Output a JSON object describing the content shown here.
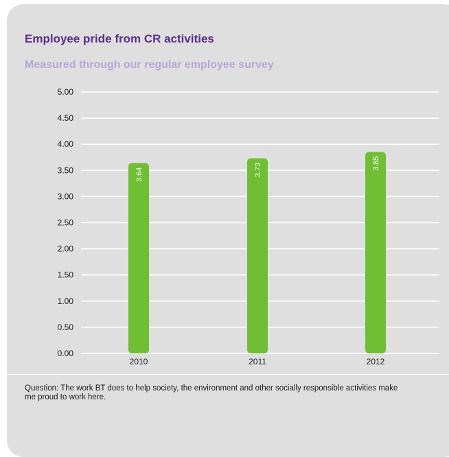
{
  "header": {
    "title": "Employee pride from CR activities",
    "subtitle": "Measured through our regular employee survey"
  },
  "footer": {
    "question": "Question: The work BT does to help society, the environment and other socially responsible activities make me proud to work here."
  },
  "colors": {
    "panel": "#dfdfdf",
    "bar": "#6fbe33",
    "gridline": "#ffffff",
    "title": "#5b2d8e",
    "subtitle": "#b8a6d8"
  },
  "chart_data": {
    "type": "bar",
    "categories": [
      "2010",
      "2011",
      "2012"
    ],
    "values": [
      3.64,
      3.73,
      3.85
    ],
    "value_labels": [
      "3.64",
      "3.73",
      "3.85"
    ],
    "title": "Employee pride from CR activities",
    "subtitle": "Measured through our regular employee survey",
    "xlabel": "",
    "ylabel": "",
    "ylim": [
      0,
      5
    ],
    "yticks": [
      0,
      0.5,
      1,
      1.5,
      2,
      2.5,
      3,
      3.5,
      4,
      4.5,
      5
    ],
    "ytick_labels": [
      "0.00",
      "0.50",
      "1.00",
      "1.50",
      "2.00",
      "2.50",
      "3.00",
      "3.50",
      "4.00",
      "4.50",
      "5.00"
    ],
    "grid": true,
    "legend": "none",
    "data_label_orientation": "vertical"
  }
}
